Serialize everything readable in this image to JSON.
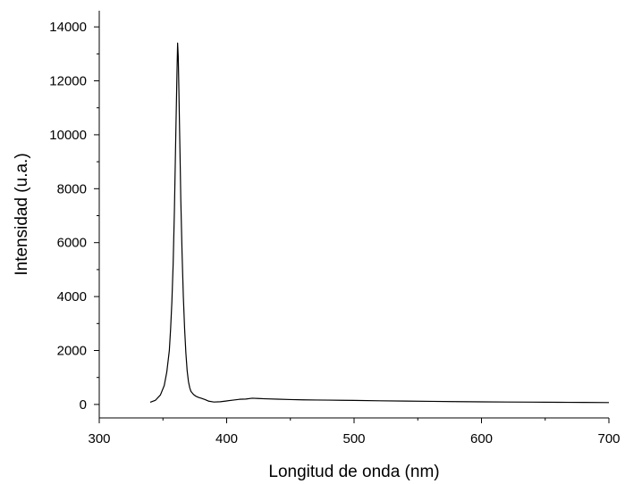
{
  "chart_data": {
    "type": "line",
    "title": "",
    "xlabel": "Longitud de onda (nm)",
    "ylabel": "Intensidad (u.a.)",
    "xlim": [
      300,
      700
    ],
    "ylim": [
      -500,
      14600
    ],
    "xticks": [
      300,
      400,
      500,
      600,
      700
    ],
    "xtick_labels": [
      "300",
      "400",
      "500",
      "600",
      "700"
    ],
    "yticks": [
      0,
      2000,
      4000,
      6000,
      8000,
      10000,
      12000,
      14000
    ],
    "ytick_labels": [
      "0",
      "2000",
      "4000",
      "6000",
      "8000",
      "10000",
      "12000",
      "14000"
    ],
    "grid": false,
    "legend": "none",
    "line_color": "#000000",
    "series": [
      {
        "x": [
          340,
          344,
          348,
          351,
          353,
          355,
          356,
          357,
          358,
          359,
          360,
          361,
          361.5,
          362,
          362.5,
          363,
          363.5,
          364,
          365,
          366,
          367,
          368,
          369,
          370,
          371,
          372,
          374,
          376,
          378,
          380,
          383,
          386,
          390,
          395,
          400,
          405,
          410,
          415,
          420,
          425,
          430,
          440,
          450,
          460,
          470,
          480,
          490,
          500,
          520,
          540,
          560,
          580,
          600,
          620,
          640,
          660,
          680,
          700
        ],
        "y": [
          80,
          150,
          350,
          700,
          1200,
          2000,
          2800,
          3800,
          5200,
          7200,
          9800,
          12300,
          13400,
          12900,
          11700,
          10300,
          9000,
          7600,
          5600,
          4000,
          2800,
          1900,
          1250,
          850,
          620,
          480,
          370,
          300,
          260,
          230,
          180,
          120,
          90,
          100,
          130,
          160,
          190,
          200,
          230,
          220,
          210,
          195,
          180,
          170,
          165,
          160,
          155,
          150,
          135,
          125,
          115,
          105,
          95,
          90,
          85,
          80,
          75,
          70
        ]
      }
    ]
  }
}
